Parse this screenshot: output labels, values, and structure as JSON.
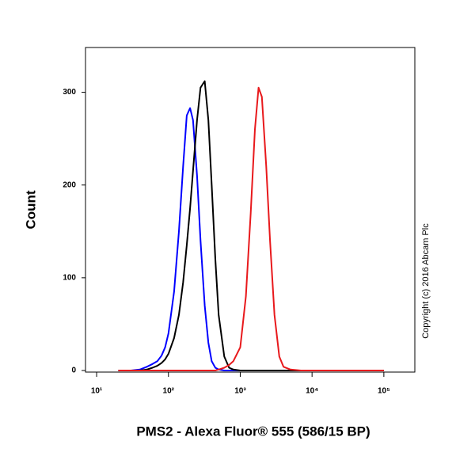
{
  "chart_data": {
    "type": "line",
    "x_label": "PMS2 - Alexa Fluor® 555 (586/15 BP)",
    "y_label": "Count",
    "annotation": "Copyright (c) 2016 Abcam Plc",
    "x_scale": "log",
    "x": [
      20,
      30,
      40,
      50,
      60,
      70,
      80,
      90,
      100,
      120,
      140,
      160,
      180,
      200,
      220,
      250,
      280,
      320,
      360,
      400,
      450,
      500,
      600,
      700,
      800,
      1000,
      1200,
      1400,
      1600,
      1800,
      2000,
      2300,
      2600,
      3000,
      3500,
      4000,
      5000,
      7000,
      10000,
      100000
    ],
    "series": [
      {
        "color": "#0000ff",
        "values": [
          0,
          0,
          1,
          4,
          7,
          10,
          16,
          25,
          40,
          85,
          150,
          220,
          275,
          283,
          270,
          210,
          140,
          70,
          30,
          10,
          3,
          1,
          0,
          0,
          0,
          0,
          0,
          0,
          0,
          0,
          0,
          0,
          0,
          0,
          0,
          0,
          0,
          0,
          0,
          0
        ]
      },
      {
        "color": "#000000",
        "values": [
          0,
          0,
          0,
          1,
          3,
          5,
          8,
          12,
          18,
          35,
          60,
          95,
          135,
          175,
          215,
          270,
          305,
          312,
          270,
          200,
          120,
          60,
          15,
          3,
          1,
          0,
          0,
          0,
          0,
          0,
          0,
          0,
          0,
          0,
          0,
          0,
          0,
          0,
          0,
          0
        ]
      },
      {
        "color": "#e8191c",
        "values": [
          0,
          0,
          0,
          0,
          0,
          0,
          0,
          0,
          0,
          0,
          0,
          0,
          0,
          0,
          0,
          0,
          0,
          0,
          0,
          0,
          0,
          1,
          3,
          6,
          10,
          25,
          80,
          170,
          260,
          305,
          295,
          220,
          140,
          60,
          15,
          4,
          1,
          0,
          0,
          0
        ]
      }
    ],
    "xlim": [
      7,
      270000
    ],
    "xticks": [
      {
        "value": 10,
        "label": "10¹"
      },
      {
        "value": 100,
        "label": "10²"
      },
      {
        "value": 1000,
        "label": "10³"
      },
      {
        "value": 10000,
        "label": "10⁴"
      },
      {
        "value": 100000,
        "label": "10⁵"
      }
    ],
    "ylim": [
      0,
      350
    ],
    "yticks": [
      0,
      100,
      200,
      300
    ]
  }
}
